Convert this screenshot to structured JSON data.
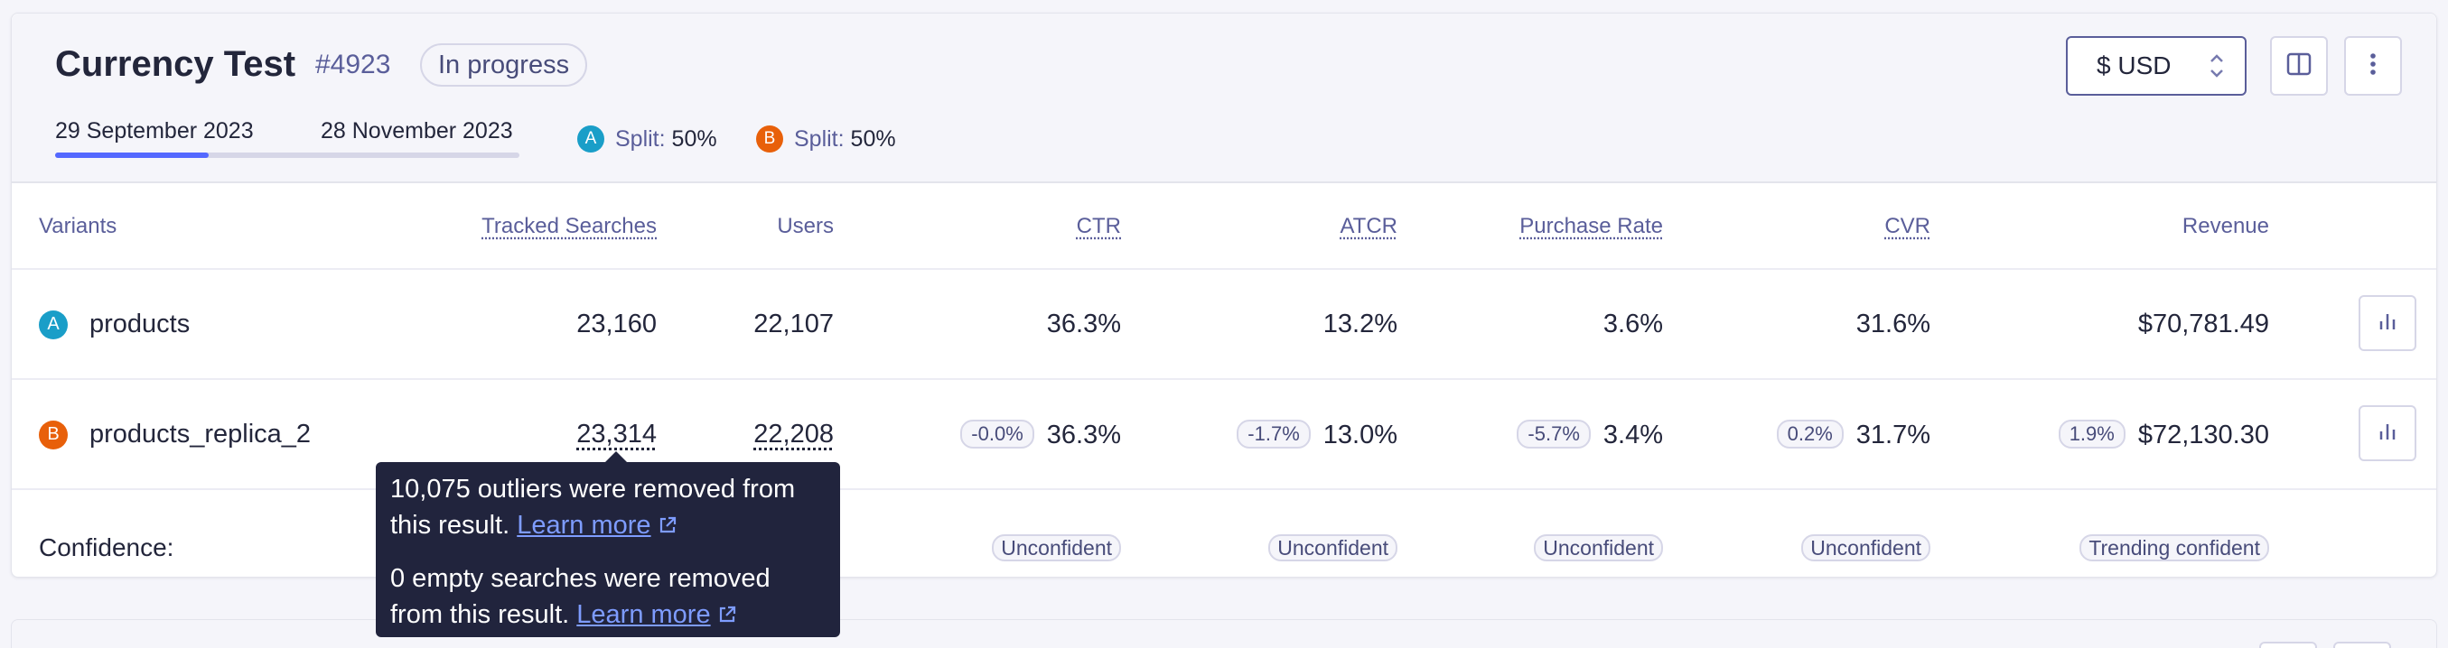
{
  "test": {
    "title": "Currency Test",
    "id": "#4923",
    "status": "In progress",
    "start_date": "29 September 2023",
    "end_date": "28 November 2023",
    "progress_fraction": 0.33,
    "splits": [
      {
        "badge": "A",
        "label": "Split:",
        "value": "50%"
      },
      {
        "badge": "B",
        "label": "Split:",
        "value": "50%"
      }
    ]
  },
  "toolbar": {
    "currency": "$ USD",
    "layout_icon": "split-view-icon",
    "more_icon": "vertical-dots-icon"
  },
  "table": {
    "headers": {
      "variants": "Variants",
      "tracked_searches": "Tracked Searches",
      "users": "Users",
      "ctr": "CTR",
      "atcr": "ATCR",
      "purchase_rate": "Purchase Rate",
      "cvr": "CVR",
      "revenue": "Revenue"
    },
    "rows": [
      {
        "badge": "A",
        "name": "products",
        "tracked_searches": "23,160",
        "users": "22,107",
        "ctr": "36.3%",
        "atcr": "13.2%",
        "purchase_rate": "3.6%",
        "cvr": "31.6%",
        "revenue": "$70,781.49"
      },
      {
        "badge": "B",
        "name": "products_replica_2",
        "tracked_searches": "23,314",
        "users": "22,208",
        "ctr_delta": "-0.0%",
        "ctr": "36.3%",
        "atcr_delta": "-1.7%",
        "atcr": "13.0%",
        "purchase_rate_delta": "-5.7%",
        "purchase_rate": "3.4%",
        "cvr_delta": "0.2%",
        "cvr": "31.7%",
        "revenue_delta": "1.9%",
        "revenue": "$72,130.30"
      }
    ],
    "confidence": {
      "label": "Confidence:",
      "ctr": "Unconfident",
      "atcr": "Unconfident",
      "purchase_rate": "Unconfident",
      "cvr": "Unconfident",
      "revenue": "Trending confident"
    }
  },
  "tooltip": {
    "line1": "10,075 outliers were removed from this result.",
    "line2": "0 empty searches were removed from this result.",
    "link": "Learn more"
  },
  "colors": {
    "badge_a": "#1a9ec8",
    "badge_b": "#e8600a",
    "accent": "#5468ff"
  }
}
